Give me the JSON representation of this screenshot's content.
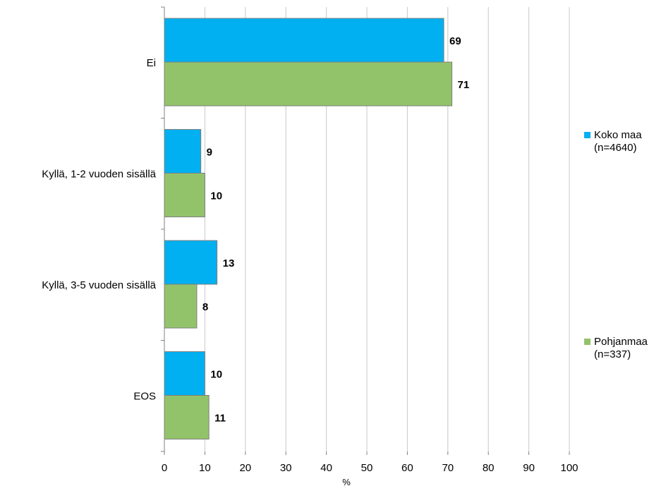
{
  "chart_data": {
    "type": "bar",
    "orientation": "horizontal",
    "categories": [
      "Ei",
      "Kyllä, 1-2 vuoden sisällä",
      "Kyllä, 3-5 vuoden sisällä",
      "EOS"
    ],
    "series": [
      {
        "name": "Koko maa\n(n=4640)",
        "name_line1": "Koko maa",
        "name_line2": "(n=4640)",
        "color": "#00B0F0",
        "values": [
          69,
          9,
          13,
          10
        ]
      },
      {
        "name": "Pohjanmaa\n(n=337)",
        "name_line1": "Pohjanmaa",
        "name_line2": "(n=337)",
        "color": "#92C36A",
        "values": [
          71,
          10,
          8,
          11
        ]
      }
    ],
    "xlabel": "%",
    "xlim": [
      0,
      100
    ],
    "xticks": [
      0,
      10,
      20,
      30,
      40,
      50,
      60,
      70,
      80,
      90,
      100
    ],
    "grid": "vertical",
    "legend_position": "right"
  }
}
